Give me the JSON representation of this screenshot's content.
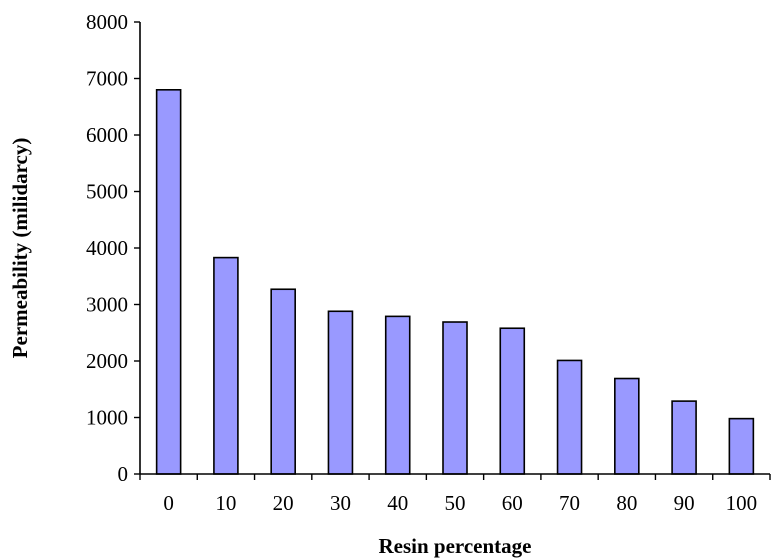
{
  "chart_data": {
    "type": "bar",
    "title": "",
    "xlabel": "Resin percentage",
    "ylabel": "Permeability (milidarcy)",
    "categories": [
      "0",
      "10",
      "20",
      "30",
      "40",
      "50",
      "60",
      "70",
      "80",
      "90",
      "100"
    ],
    "values": [
      6800,
      3830,
      3270,
      2880,
      2790,
      2690,
      2580,
      2010,
      1690,
      1290,
      980
    ],
    "ylim": [
      0,
      8000
    ],
    "yticks": [
      "0",
      "1000",
      "2000",
      "3000",
      "4000",
      "5000",
      "6000",
      "7000",
      "8000"
    ],
    "ytick_values": [
      0,
      1000,
      2000,
      3000,
      4000,
      5000,
      6000,
      7000,
      8000
    ],
    "grid": false,
    "legend": "none",
    "bar_color": "#9999ff",
    "bar_edge_color": "#000000"
  }
}
